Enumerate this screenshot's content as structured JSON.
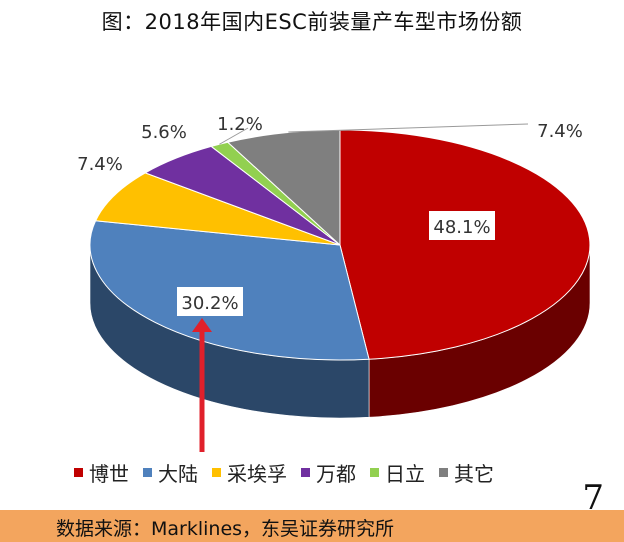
{
  "title": "图：2018年国内ESC前装量产车型市场份额",
  "colors": {
    "博世": "#c00000",
    "大陆": "#4f81bd",
    "采埃孚": "#ffc000",
    "万都": "#7030a0",
    "日立": "#92d050",
    "其它": "#7f7f7f"
  },
  "chart_data": {
    "type": "pie",
    "style": "3d",
    "legend_position": "bottom",
    "series": [
      {
        "name": "博世",
        "value": 48.1,
        "label": "48.1%"
      },
      {
        "name": "大陆",
        "value": 30.2,
        "label": "30.2%"
      },
      {
        "name": "采埃孚",
        "value": 7.4,
        "label": "7.4%"
      },
      {
        "name": "万都",
        "value": 5.6,
        "label": "5.6%"
      },
      {
        "name": "日立",
        "value": 1.2,
        "label": "1.2%"
      },
      {
        "name": "其它",
        "value": 7.4,
        "label": "7.4%"
      }
    ]
  },
  "annotation": "red arrow pointing to 大陆 label",
  "page_number": "7",
  "source": "数据来源：Marklines，东吴证券研究所"
}
